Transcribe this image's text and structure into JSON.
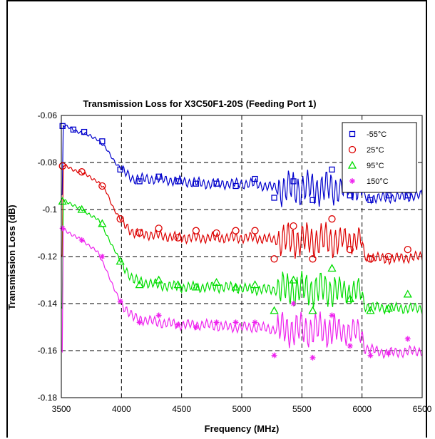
{
  "chart_data": {
    "type": "line",
    "title": "Transmission Loss for X3C50F1-20S (Feeding Port 1)",
    "xlabel": "Frequency (MHz)",
    "ylabel": "Transmission Loss (dB)",
    "xlim": [
      3500,
      6500
    ],
    "ylim": [
      -0.18,
      -0.06
    ],
    "xticks": [
      3500,
      4000,
      4500,
      5000,
      5500,
      6000,
      6500
    ],
    "yticks": [
      -0.06,
      -0.08,
      -0.1,
      -0.12,
      -0.14,
      -0.16,
      -0.18
    ],
    "xtick_labels": [
      "3500",
      "4000",
      "4500",
      "5000",
      "5500",
      "6000",
      "6500"
    ],
    "ytick_labels": [
      "-0.06",
      "-0.08",
      "-0.1",
      "-0.12",
      "-0.14",
      "-0.16",
      "-0.18"
    ],
    "grid": "dashed",
    "legend_position": "top-right",
    "series": [
      {
        "name": "-55°C",
        "color": "#0000cc",
        "marker": "square",
        "markers": [
          [
            3510,
            -0.0645
          ],
          [
            3600,
            -0.066
          ],
          [
            3690,
            -0.067
          ],
          [
            3840,
            -0.071
          ],
          [
            3990,
            -0.083
          ],
          [
            4150,
            -0.088
          ],
          [
            4310,
            -0.086
          ],
          [
            4470,
            -0.088
          ],
          [
            4620,
            -0.089
          ],
          [
            4790,
            -0.089
          ],
          [
            4950,
            -0.09
          ],
          [
            5110,
            -0.087
          ],
          [
            5270,
            -0.095
          ],
          [
            5430,
            -0.088
          ],
          [
            5590,
            -0.096
          ],
          [
            5750,
            -0.083
          ],
          [
            5900,
            -0.094
          ],
          [
            6070,
            -0.096
          ],
          [
            6220,
            -0.094
          ],
          [
            6380,
            -0.094
          ]
        ],
        "points": [
          [
            3510,
            -0.064
          ],
          [
            3600,
            -0.066
          ],
          [
            3700,
            -0.068
          ],
          [
            3800,
            -0.07
          ],
          [
            3870,
            -0.074
          ],
          [
            3950,
            -0.08
          ],
          [
            4020,
            -0.084
          ],
          [
            4100,
            -0.087
          ],
          [
            4300,
            -0.087
          ],
          [
            4500,
            -0.088
          ],
          [
            4700,
            -0.089
          ],
          [
            4900,
            -0.089
          ],
          [
            5100,
            -0.089
          ],
          [
            5300,
            -0.091
          ],
          [
            5500,
            -0.091
          ],
          [
            5700,
            -0.091
          ],
          [
            5900,
            -0.091
          ],
          [
            6000,
            -0.091
          ],
          [
            6020,
            -0.095
          ],
          [
            6200,
            -0.095
          ],
          [
            6500,
            -0.094
          ]
        ]
      },
      {
        "name": "25°C",
        "color": "#dd0000",
        "marker": "circle",
        "markers": [
          [
            3510,
            -0.0815
          ],
          [
            3670,
            -0.084
          ],
          [
            3840,
            -0.09
          ],
          [
            3990,
            -0.104
          ],
          [
            4150,
            -0.11
          ],
          [
            4310,
            -0.108
          ],
          [
            4470,
            -0.112
          ],
          [
            4620,
            -0.109
          ],
          [
            4790,
            -0.11
          ],
          [
            4950,
            -0.109
          ],
          [
            5110,
            -0.109
          ],
          [
            5270,
            -0.121
          ],
          [
            5430,
            -0.107
          ],
          [
            5590,
            -0.121
          ],
          [
            5750,
            -0.104
          ],
          [
            5900,
            -0.117
          ],
          [
            6070,
            -0.121
          ],
          [
            6220,
            -0.12
          ],
          [
            6380,
            -0.117
          ]
        ],
        "points": [
          [
            3510,
            -0.081
          ],
          [
            3600,
            -0.083
          ],
          [
            3700,
            -0.085
          ],
          [
            3800,
            -0.088
          ],
          [
            3870,
            -0.092
          ],
          [
            3940,
            -0.1
          ],
          [
            4000,
            -0.105
          ],
          [
            4100,
            -0.11
          ],
          [
            4300,
            -0.111
          ],
          [
            4500,
            -0.112
          ],
          [
            4700,
            -0.112
          ],
          [
            4900,
            -0.112
          ],
          [
            5100,
            -0.112
          ],
          [
            5300,
            -0.113
          ],
          [
            5500,
            -0.113
          ],
          [
            5700,
            -0.113
          ],
          [
            5900,
            -0.113
          ],
          [
            6000,
            -0.113
          ],
          [
            6020,
            -0.12
          ],
          [
            6200,
            -0.121
          ],
          [
            6500,
            -0.12
          ]
        ]
      },
      {
        "name": "95°C",
        "color": "#00dd00",
        "marker": "triangle",
        "markers": [
          [
            3510,
            -0.0965
          ],
          [
            3670,
            -0.1
          ],
          [
            3840,
            -0.106
          ],
          [
            3990,
            -0.122
          ],
          [
            4150,
            -0.132
          ],
          [
            4310,
            -0.13
          ],
          [
            4470,
            -0.132
          ],
          [
            4620,
            -0.133
          ],
          [
            4790,
            -0.131
          ],
          [
            4950,
            -0.133
          ],
          [
            5110,
            -0.132
          ],
          [
            5270,
            -0.143
          ],
          [
            5430,
            -0.13
          ],
          [
            5590,
            -0.143
          ],
          [
            5750,
            -0.125
          ],
          [
            5900,
            -0.138
          ],
          [
            6070,
            -0.143
          ],
          [
            6220,
            -0.142
          ],
          [
            6380,
            -0.136
          ]
        ],
        "points": [
          [
            3510,
            -0.096
          ],
          [
            3600,
            -0.098
          ],
          [
            3700,
            -0.101
          ],
          [
            3800,
            -0.104
          ],
          [
            3870,
            -0.11
          ],
          [
            3940,
            -0.117
          ],
          [
            4000,
            -0.123
          ],
          [
            4100,
            -0.13
          ],
          [
            4300,
            -0.132
          ],
          [
            4500,
            -0.133
          ],
          [
            4700,
            -0.133
          ],
          [
            4900,
            -0.133
          ],
          [
            5100,
            -0.134
          ],
          [
            5300,
            -0.134
          ],
          [
            5500,
            -0.134
          ],
          [
            5700,
            -0.134
          ],
          [
            5900,
            -0.135
          ],
          [
            6000,
            -0.135
          ],
          [
            6020,
            -0.141
          ],
          [
            6200,
            -0.142
          ],
          [
            6500,
            -0.142
          ]
        ]
      },
      {
        "name": "150°C",
        "color": "#ee22ee",
        "marker": "asterisk",
        "markers": [
          [
            3510,
            -0.108
          ],
          [
            3670,
            -0.113
          ],
          [
            3840,
            -0.12
          ],
          [
            3990,
            -0.139
          ],
          [
            4150,
            -0.148
          ],
          [
            4310,
            -0.145
          ],
          [
            4470,
            -0.149
          ],
          [
            4620,
            -0.15
          ],
          [
            4790,
            -0.148
          ],
          [
            4950,
            -0.148
          ],
          [
            5110,
            -0.148
          ],
          [
            5270,
            -0.162
          ],
          [
            5430,
            -0.14
          ],
          [
            5590,
            -0.163
          ],
          [
            5750,
            -0.145
          ],
          [
            5900,
            -0.158
          ],
          [
            6070,
            -0.162
          ],
          [
            6220,
            -0.161
          ],
          [
            6380,
            -0.155
          ]
        ],
        "points": [
          [
            3510,
            -0.108
          ],
          [
            3600,
            -0.111
          ],
          [
            3700,
            -0.114
          ],
          [
            3800,
            -0.118
          ],
          [
            3870,
            -0.125
          ],
          [
            3940,
            -0.134
          ],
          [
            4000,
            -0.14
          ],
          [
            4100,
            -0.146
          ],
          [
            4300,
            -0.148
          ],
          [
            4500,
            -0.149
          ],
          [
            4700,
            -0.149
          ],
          [
            4900,
            -0.15
          ],
          [
            5100,
            -0.15
          ],
          [
            5300,
            -0.151
          ],
          [
            5500,
            -0.151
          ],
          [
            5700,
            -0.151
          ],
          [
            5900,
            -0.152
          ],
          [
            6000,
            -0.152
          ],
          [
            6020,
            -0.159
          ],
          [
            6200,
            -0.161
          ],
          [
            6500,
            -0.16
          ]
        ]
      }
    ]
  }
}
